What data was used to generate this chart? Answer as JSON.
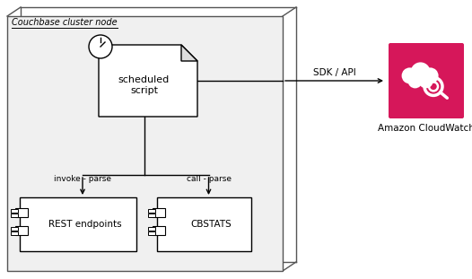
{
  "bg_color": "#ffffff",
  "text_color": "#000000",
  "cloud_bg": "#d6175a",
  "title": "Couchbase cluster node",
  "script_label": "scheduled\nscript",
  "rest_label": "REST endpoints",
  "cbstats_label": "CBSTATS",
  "invoke_label": "invoke - parse",
  "call_label": "call - parse",
  "sdk_label": "SDK / API",
  "cloudwatch_label": "Amazon CloudWatch",
  "fig_width": 5.26,
  "fig_height": 3.11,
  "dpi": 100
}
